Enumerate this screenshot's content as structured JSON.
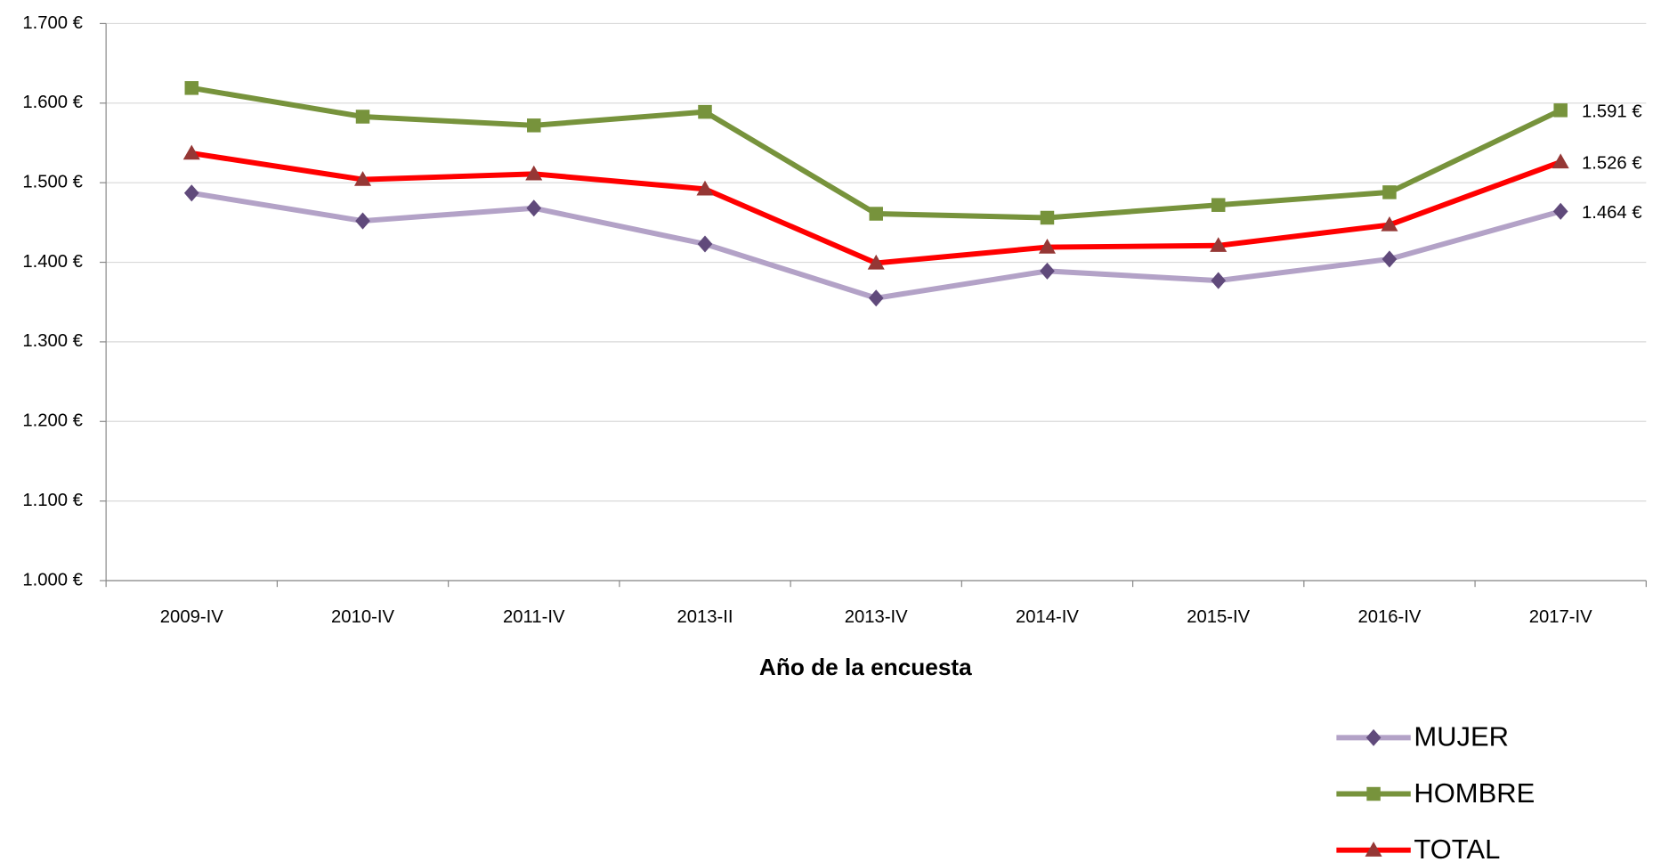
{
  "chart_data": {
    "type": "line",
    "x_label": "Año de la encuesta",
    "categories": [
      "2009-IV",
      "2010-IV",
      "2011-IV",
      "2013-II",
      "2013-IV",
      "2014-IV",
      "2015-IV",
      "2016-IV",
      "2017-IV"
    ],
    "series": [
      {
        "name": "MUJER",
        "color": "#b3a2c7",
        "marker": "diamond",
        "marker_color": "#604a7b",
        "values": [
          1487,
          1452,
          1468,
          1423,
          1355,
          1389,
          1377,
          1404,
          1464
        ],
        "value_labels": [
          null,
          null,
          null,
          null,
          null,
          null,
          null,
          null,
          "1.464 €"
        ]
      },
      {
        "name": "HOMBRE",
        "color": "#77933c",
        "marker": "square",
        "marker_color": "#77933c",
        "values": [
          1619,
          1583,
          1572,
          1589,
          1461,
          1456,
          1472,
          1488,
          1591
        ],
        "value_labels": [
          null,
          null,
          null,
          null,
          null,
          null,
          null,
          null,
          "1.591 €"
        ]
      },
      {
        "name": "TOTAL",
        "color": "#ff0000",
        "marker": "triangle",
        "marker_color": "#953735",
        "values": [
          1537,
          1504,
          1511,
          1492,
          1399,
          1419,
          1421,
          1447,
          1526
        ],
        "value_labels": [
          null,
          null,
          null,
          null,
          null,
          null,
          null,
          null,
          "1.526 €"
        ]
      }
    ],
    "ylim": [
      1000,
      1700
    ],
    "yticks": [
      {
        "value": 1000,
        "label": "1.000 €"
      },
      {
        "value": 1100,
        "label": "1.100 €"
      },
      {
        "value": 1200,
        "label": "1.200 €"
      },
      {
        "value": 1300,
        "label": "1.300 €"
      },
      {
        "value": 1400,
        "label": "1.400 €"
      },
      {
        "value": 1500,
        "label": "1.500 €"
      },
      {
        "value": 1600,
        "label": "1.600 €"
      },
      {
        "value": 1700,
        "label": "1.700 €"
      }
    ],
    "grid": true,
    "legend": "bottom-right"
  }
}
